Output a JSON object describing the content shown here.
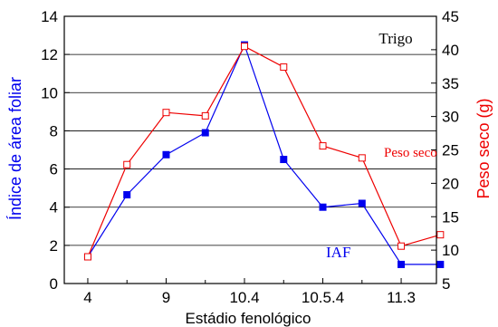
{
  "chart_data": {
    "type": "line",
    "title": "Trigo",
    "xlabel": "Estádio fenológico",
    "ylabel_left": "Índice de área foliar",
    "ylabel_right": "Peso seco (g)",
    "x_tick_labels": [
      "4",
      "9",
      "10.4",
      "10.5.4",
      "11.3"
    ],
    "x_tick_positions": [
      0,
      2,
      4,
      6,
      8
    ],
    "xlim": [
      -0.6,
      8.9
    ],
    "ylim_left": [
      0,
      14
    ],
    "ylim_right": [
      5,
      45
    ],
    "y_ticks_left": [
      0,
      2,
      4,
      6,
      8,
      10,
      12,
      14
    ],
    "y_ticks_right": [
      5,
      10,
      15,
      20,
      25,
      30,
      35,
      40,
      45
    ],
    "grid": "horizontal",
    "series": [
      {
        "name": "IAF",
        "axis": "left",
        "color": "#0000ee",
        "marker": "filled-square",
        "x": [
          0,
          1,
          2,
          3,
          4,
          5,
          6,
          7,
          8,
          9
        ],
        "values": [
          1.4,
          4.65,
          6.75,
          7.9,
          12.5,
          6.5,
          4.0,
          4.2,
          1.0,
          1.0
        ]
      },
      {
        "name": "Peso seco",
        "axis": "right",
        "color": "#ee0000",
        "marker": "open-square",
        "x": [
          0,
          1,
          2,
          3,
          4,
          5,
          6,
          7,
          8,
          9
        ],
        "values": [
          9.0,
          22.8,
          30.6,
          30.1,
          40.5,
          37.4,
          25.6,
          23.8,
          10.6,
          12.3
        ]
      }
    ]
  }
}
